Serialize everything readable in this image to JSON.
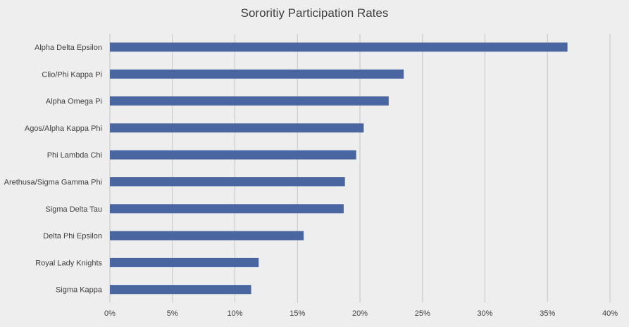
{
  "chart_data": {
    "type": "bar",
    "orientation": "horizontal",
    "title": "Sororitiy Participation Rates",
    "xlabel": "",
    "ylabel": "",
    "categories": [
      "Alpha Delta Epsilon",
      "Clio/Phi Kappa Pi",
      "Alpha Omega Pi",
      "Agos/Alpha Kappa Phi",
      "Phi Lambda Chi",
      "Arethusa/Sigma Gamma Phi",
      "Sigma Delta Tau",
      "Delta Phi Epsilon",
      "Royal Lady Knights",
      "Sigma Kappa"
    ],
    "values": [
      36.6,
      23.5,
      22.3,
      20.3,
      19.7,
      18.8,
      18.7,
      15.5,
      11.9,
      11.3
    ],
    "value_unit": "%",
    "xlim": [
      0,
      40
    ],
    "x_ticks": [
      0,
      5,
      10,
      15,
      20,
      25,
      30,
      35,
      40
    ],
    "x_tick_labels": [
      "0%",
      "5%",
      "10%",
      "15%",
      "20%",
      "25%",
      "30%",
      "35%",
      "40%"
    ],
    "grid": true,
    "legend": "none",
    "colors": {
      "bar": "#4a66a0",
      "grid": "#c4c4c4",
      "background": "#eeeeee",
      "text": "#404040"
    }
  }
}
